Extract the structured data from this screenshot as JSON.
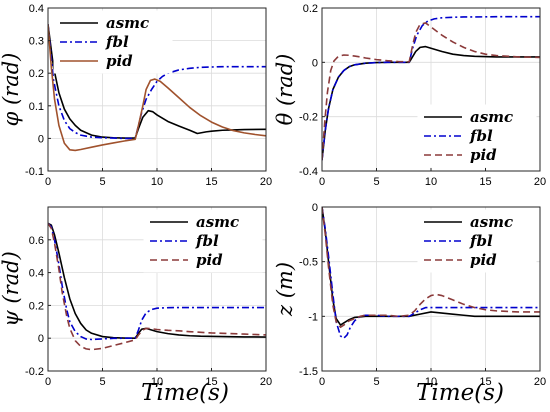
{
  "colors": {
    "asmc": "#000000",
    "fbl": "#0000cd",
    "pid_panel1": "#a0522d",
    "pid": "#8b3a3a"
  },
  "x_axis_label": "Time(s)",
  "chart_data": [
    {
      "type": "line",
      "ylabel": "φ (rad)",
      "xlim": [
        0,
        20
      ],
      "ylim": [
        -0.1,
        0.4
      ],
      "xticks": [
        0,
        5,
        10,
        15,
        20
      ],
      "yticks": [
        -0.1,
        0,
        0.1,
        0.2,
        0.3,
        0.4
      ],
      "ytick_labels": [
        "-0.1",
        "0",
        "0.1",
        "0.2",
        "0.3",
        "0.4"
      ],
      "grid": true,
      "legend_position": "top-left",
      "series": [
        {
          "name": "asmc",
          "style": "solid",
          "x": [
            0,
            0.5,
            1,
            1.5,
            2,
            2.5,
            3,
            4,
            5,
            6,
            7,
            8,
            8.3,
            8.7,
            9.2,
            9.6,
            10,
            10.5,
            11,
            12,
            13,
            13.7,
            14.5,
            15,
            16,
            17,
            18,
            20
          ],
          "y": [
            0.35,
            0.22,
            0.14,
            0.09,
            0.06,
            0.04,
            0.025,
            0.01,
            0.004,
            0.002,
            0.001,
            0.001,
            0.03,
            0.065,
            0.085,
            0.082,
            0.072,
            0.062,
            0.052,
            0.038,
            0.025,
            0.015,
            0.02,
            0.022,
            0.025,
            0.026,
            0.027,
            0.028
          ]
        },
        {
          "name": "fbl",
          "style": "dashdot",
          "x": [
            0,
            0.5,
            1,
            1.5,
            2,
            2.5,
            3,
            4,
            5,
            6,
            7,
            8,
            8.3,
            8.6,
            9,
            9.5,
            10,
            10.5,
            11,
            12,
            13,
            14,
            16,
            18,
            20
          ],
          "y": [
            0.35,
            0.18,
            0.1,
            0.055,
            0.03,
            0.018,
            0.01,
            0.004,
            0.002,
            0.001,
            0.0,
            0.0,
            0.04,
            0.08,
            0.12,
            0.15,
            0.175,
            0.19,
            0.2,
            0.21,
            0.215,
            0.218,
            0.22,
            0.22,
            0.22
          ]
        },
        {
          "name": "pid",
          "style": "solid",
          "x": [
            0,
            0.3,
            0.6,
            1,
            1.5,
            2,
            2.5,
            3,
            4,
            5,
            6,
            7,
            8,
            8.3,
            8.7,
            9,
            9.4,
            9.8,
            10.3,
            11,
            12,
            13,
            14,
            15,
            16,
            17,
            18,
            19,
            20
          ],
          "y": [
            0.35,
            0.22,
            0.12,
            0.04,
            -0.015,
            -0.035,
            -0.037,
            -0.034,
            -0.027,
            -0.02,
            -0.014,
            -0.008,
            -0.003,
            0.04,
            0.1,
            0.15,
            0.178,
            0.182,
            0.175,
            0.155,
            0.125,
            0.095,
            0.07,
            0.05,
            0.035,
            0.024,
            0.017,
            0.012,
            0.008
          ]
        }
      ]
    },
    {
      "type": "line",
      "ylabel": "θ (rad)",
      "xlim": [
        0,
        20
      ],
      "ylim": [
        -0.4,
        0.2
      ],
      "xticks": [
        0,
        5,
        10,
        15,
        20
      ],
      "yticks": [
        -0.4,
        -0.2,
        0,
        0.2
      ],
      "ytick_labels": [
        "-0.4",
        "-0.2",
        "0",
        "0.2"
      ],
      "grid": true,
      "legend_position": "bottom-right",
      "series": [
        {
          "name": "asmc",
          "style": "solid",
          "x": [
            0,
            0.3,
            0.6,
            1,
            1.5,
            2,
            2.5,
            3,
            4,
            5,
            6,
            7,
            8,
            8.3,
            8.6,
            9,
            9.5,
            10,
            11,
            12,
            13,
            14,
            16,
            18,
            20
          ],
          "y": [
            -0.36,
            -0.25,
            -0.17,
            -0.1,
            -0.055,
            -0.03,
            -0.016,
            -0.009,
            -0.003,
            -0.001,
            0,
            0,
            0,
            0.02,
            0.04,
            0.055,
            0.058,
            0.052,
            0.04,
            0.03,
            0.025,
            0.022,
            0.02,
            0.02,
            0.02
          ]
        },
        {
          "name": "fbl",
          "style": "dashdot",
          "x": [
            0,
            0.3,
            0.6,
            1,
            1.5,
            2,
            2.5,
            3,
            4,
            5,
            6,
            7,
            8,
            8.3,
            8.7,
            9.2,
            9.7,
            10.3,
            11,
            12,
            13,
            14,
            16,
            18,
            20
          ],
          "y": [
            -0.36,
            -0.25,
            -0.17,
            -0.1,
            -0.055,
            -0.03,
            -0.016,
            -0.009,
            -0.003,
            -0.001,
            0,
            0,
            0,
            0.05,
            0.1,
            0.135,
            0.152,
            0.16,
            0.164,
            0.166,
            0.167,
            0.167,
            0.168,
            0.168,
            0.168
          ]
        },
        {
          "name": "pid",
          "style": "dashed",
          "x": [
            0,
            0.25,
            0.5,
            0.8,
            1.1,
            1.5,
            2,
            2.5,
            3,
            3.5,
            4,
            5,
            6,
            7,
            8,
            8.3,
            8.6,
            9,
            9.5,
            10,
            11,
            12,
            13,
            14,
            15,
            16,
            18,
            20
          ],
          "y": [
            -0.36,
            -0.22,
            -0.11,
            -0.03,
            0.005,
            0.022,
            0.027,
            0.026,
            0.023,
            0.02,
            0.016,
            0.01,
            0.006,
            0.003,
            0.002,
            0.06,
            0.11,
            0.14,
            0.145,
            0.13,
            0.1,
            0.075,
            0.055,
            0.04,
            0.03,
            0.025,
            0.02,
            0.018
          ]
        }
      ]
    },
    {
      "type": "line",
      "ylabel": "ψ (rad)",
      "xlim": [
        0,
        20
      ],
      "ylim": [
        -0.2,
        0.8
      ],
      "xticks": [
        0,
        5,
        10,
        15,
        20
      ],
      "yticks": [
        -0.2,
        0,
        0.2,
        0.4,
        0.6
      ],
      "ytick_labels": [
        "-0.2",
        "0",
        "0.2",
        "0.4",
        "0.6"
      ],
      "grid": true,
      "legend_position": "top-right",
      "series": [
        {
          "name": "asmc",
          "style": "solid",
          "x": [
            0,
            0.3,
            0.6,
            1,
            1.5,
            2,
            2.5,
            3,
            3.5,
            4,
            5,
            6,
            7,
            8,
            8.3,
            8.6,
            9,
            9.5,
            10,
            11,
            12,
            13,
            14,
            16,
            18,
            20
          ],
          "y": [
            0.7,
            0.69,
            0.63,
            0.52,
            0.37,
            0.24,
            0.15,
            0.09,
            0.05,
            0.03,
            0.01,
            0.003,
            0.001,
            0,
            0.03,
            0.055,
            0.06,
            0.05,
            0.04,
            0.028,
            0.02,
            0.015,
            0.012,
            0.01,
            0.008,
            0.007
          ]
        },
        {
          "name": "fbl",
          "style": "dashdot",
          "x": [
            0,
            0.3,
            0.6,
            1,
            1.3,
            1.7,
            2,
            2.5,
            3,
            3.5,
            4,
            5,
            6,
            7,
            8,
            8.3,
            8.6,
            9,
            9.5,
            10,
            11,
            12,
            14,
            16,
            18,
            20
          ],
          "y": [
            0.7,
            0.68,
            0.6,
            0.45,
            0.32,
            0.18,
            0.1,
            0.04,
            0.01,
            -0.005,
            -0.008,
            -0.004,
            -0.001,
            0,
            0,
            0.05,
            0.11,
            0.155,
            0.175,
            0.183,
            0.186,
            0.187,
            0.187,
            0.187,
            0.187,
            0.187
          ]
        },
        {
          "name": "pid",
          "style": "dashed",
          "x": [
            0,
            0.3,
            0.6,
            1,
            1.3,
            1.7,
            2,
            2.5,
            3,
            3.5,
            4,
            5,
            6,
            7,
            8,
            8.3,
            8.7,
            9,
            9.5,
            10,
            11,
            12,
            13,
            14,
            15,
            16,
            18,
            20
          ],
          "y": [
            0.7,
            0.67,
            0.58,
            0.42,
            0.28,
            0.14,
            0.06,
            -0.015,
            -0.05,
            -0.065,
            -0.07,
            -0.062,
            -0.045,
            -0.028,
            -0.01,
            0.02,
            0.05,
            0.06,
            0.058,
            0.053,
            0.048,
            0.045,
            0.04,
            0.036,
            0.032,
            0.03,
            0.025,
            0.02
          ]
        }
      ]
    },
    {
      "type": "line",
      "ylabel": "z (m)",
      "xlim": [
        0,
        20
      ],
      "ylim": [
        -1.5,
        0
      ],
      "xticks": [
        0,
        5,
        10,
        15,
        20
      ],
      "yticks": [
        -1.5,
        -1,
        -0.5,
        0
      ],
      "ytick_labels": [
        "-1.5",
        "-1",
        "-0.5",
        "0"
      ],
      "grid": true,
      "legend_position": "top-right",
      "series": [
        {
          "name": "asmc",
          "style": "solid",
          "x": [
            0,
            0.3,
            0.6,
            1,
            1.3,
            1.7,
            2,
            2.5,
            3,
            4,
            5,
            6,
            7,
            8,
            9,
            10,
            11,
            12,
            13,
            14,
            16,
            18,
            20
          ],
          "y": [
            0,
            -0.22,
            -0.5,
            -0.85,
            -1.02,
            -1.08,
            -1.06,
            -1.03,
            -1.01,
            -1.0,
            -1.0,
            -1.0,
            -1.0,
            -1.0,
            -0.98,
            -0.96,
            -0.97,
            -0.98,
            -0.99,
            -1.0,
            -1.0,
            -1.0,
            -1.0
          ]
        },
        {
          "name": "fbl",
          "style": "dashdot",
          "x": [
            0,
            0.3,
            0.6,
            1,
            1.3,
            1.7,
            2,
            2.3,
            2.6,
            3,
            3.5,
            4,
            5,
            6,
            7,
            8,
            8.5,
            9,
            9.5,
            10,
            11,
            12,
            14,
            16,
            18,
            20
          ],
          "y": [
            0,
            -0.2,
            -0.45,
            -0.8,
            -1.05,
            -1.18,
            -1.2,
            -1.17,
            -1.1,
            -1.04,
            -1.0,
            -0.99,
            -0.99,
            -1.0,
            -1.0,
            -1.0,
            -0.97,
            -0.94,
            -0.92,
            -0.92,
            -0.92,
            -0.92,
            -0.92,
            -0.92,
            -0.92,
            -0.92
          ]
        },
        {
          "name": "pid",
          "style": "dashed",
          "x": [
            0,
            0.3,
            0.6,
            1,
            1.3,
            1.7,
            2,
            2.5,
            3,
            3.5,
            4,
            5,
            6,
            7,
            8,
            8.5,
            9,
            9.5,
            10,
            10.5,
            11,
            12,
            13,
            14,
            15,
            16,
            18,
            20
          ],
          "y": [
            0,
            -0.25,
            -0.55,
            -0.9,
            -1.05,
            -1.1,
            -1.08,
            -1.04,
            -1.02,
            -1.0,
            -0.99,
            -0.99,
            -0.99,
            -1.0,
            -0.99,
            -0.95,
            -0.89,
            -0.84,
            -0.81,
            -0.8,
            -0.81,
            -0.85,
            -0.89,
            -0.92,
            -0.94,
            -0.95,
            -0.96,
            -0.96
          ]
        }
      ]
    }
  ]
}
